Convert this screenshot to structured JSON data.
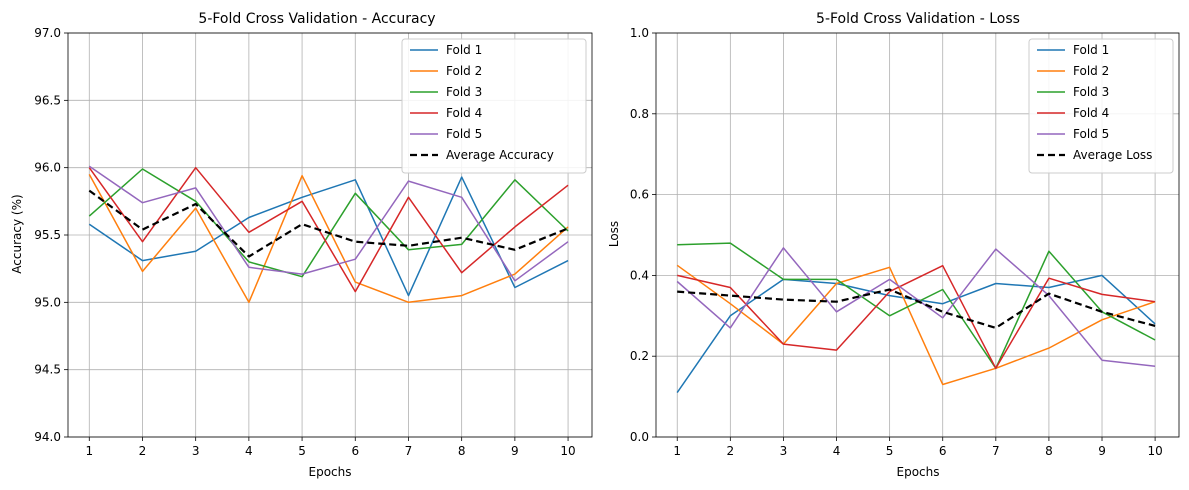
{
  "chart_data": [
    {
      "type": "line",
      "title": "5-Fold Cross Validation - Accuracy",
      "xlabel": "Epochs",
      "ylabel": "Accuracy (%)",
      "x": [
        1,
        2,
        3,
        4,
        5,
        6,
        7,
        8,
        9,
        10
      ],
      "xlim": [
        0.6,
        10.45
      ],
      "ylim": [
        94.0,
        97.0
      ],
      "xticks": [
        "1",
        "2",
        "3",
        "4",
        "5",
        "6",
        "7",
        "8",
        "9",
        "10"
      ],
      "yticks": [
        "94.0",
        "94.5",
        "95.0",
        "95.5",
        "96.0",
        "96.5",
        "97.0"
      ],
      "grid": true,
      "legend": "upper right",
      "series": [
        {
          "name": "Fold 1",
          "color": "#1f77b4",
          "style": "solid",
          "values": [
            95.58,
            95.31,
            95.38,
            95.63,
            95.78,
            95.91,
            95.05,
            95.93,
            95.11,
            95.31
          ]
        },
        {
          "name": "Fold 2",
          "color": "#ff7f0e",
          "style": "solid",
          "values": [
            95.95,
            95.23,
            95.7,
            95.0,
            95.94,
            95.15,
            95.0,
            95.05,
            95.21,
            95.56
          ]
        },
        {
          "name": "Fold 3",
          "color": "#2ca02c",
          "style": "solid",
          "values": [
            95.64,
            95.99,
            95.75,
            95.3,
            95.19,
            95.81,
            95.39,
            95.43,
            95.91,
            95.53
          ]
        },
        {
          "name": "Fold 4",
          "color": "#d62728",
          "style": "solid",
          "values": [
            96.0,
            95.45,
            96.0,
            95.52,
            95.75,
            95.08,
            95.78,
            95.22,
            95.56,
            95.87
          ]
        },
        {
          "name": "Fold 5",
          "color": "#9467bd",
          "style": "solid",
          "values": [
            96.01,
            95.74,
            95.85,
            95.26,
            95.21,
            95.32,
            95.9,
            95.78,
            95.16,
            95.45
          ]
        },
        {
          "name": "Average Accuracy",
          "color": "#000000",
          "style": "dashed",
          "values": [
            95.83,
            95.54,
            95.73,
            95.34,
            95.58,
            95.45,
            95.42,
            95.48,
            95.39,
            95.55
          ]
        }
      ]
    },
    {
      "type": "line",
      "title": "5-Fold Cross Validation - Loss",
      "xlabel": "Epochs",
      "ylabel": "Loss",
      "x": [
        1,
        2,
        3,
        4,
        5,
        6,
        7,
        8,
        9,
        10
      ],
      "xlim": [
        0.6,
        10.45
      ],
      "ylim": [
        0.0,
        1.0
      ],
      "xticks": [
        "1",
        "2",
        "3",
        "4",
        "5",
        "6",
        "7",
        "8",
        "9",
        "10"
      ],
      "yticks": [
        "0.0",
        "0.2",
        "0.4",
        "0.6",
        "0.8",
        "1.0"
      ],
      "grid": true,
      "legend": "upper right",
      "series": [
        {
          "name": "Fold 1",
          "color": "#1f77b4",
          "style": "solid",
          "values": [
            0.11,
            0.3,
            0.39,
            0.38,
            0.35,
            0.33,
            0.38,
            0.37,
            0.4,
            0.28
          ]
        },
        {
          "name": "Fold 2",
          "color": "#ff7f0e",
          "style": "solid",
          "values": [
            0.425,
            0.33,
            0.23,
            0.38,
            0.42,
            0.13,
            0.17,
            0.22,
            0.29,
            0.335
          ]
        },
        {
          "name": "Fold 3",
          "color": "#2ca02c",
          "style": "solid",
          "values": [
            0.476,
            0.48,
            0.39,
            0.39,
            0.3,
            0.365,
            0.17,
            0.46,
            0.31,
            0.24
          ]
        },
        {
          "name": "Fold 4",
          "color": "#d62728",
          "style": "solid",
          "values": [
            0.4,
            0.37,
            0.23,
            0.215,
            0.36,
            0.424,
            0.17,
            0.393,
            0.353,
            0.335
          ]
        },
        {
          "name": "Fold 5",
          "color": "#9467bd",
          "style": "solid",
          "values": [
            0.385,
            0.27,
            0.468,
            0.31,
            0.39,
            0.295,
            0.465,
            0.35,
            0.19,
            0.175
          ]
        },
        {
          "name": "Average Loss",
          "color": "#000000",
          "style": "dashed",
          "values": [
            0.36,
            0.35,
            0.34,
            0.335,
            0.365,
            0.31,
            0.27,
            0.355,
            0.31,
            0.275
          ]
        }
      ]
    }
  ]
}
